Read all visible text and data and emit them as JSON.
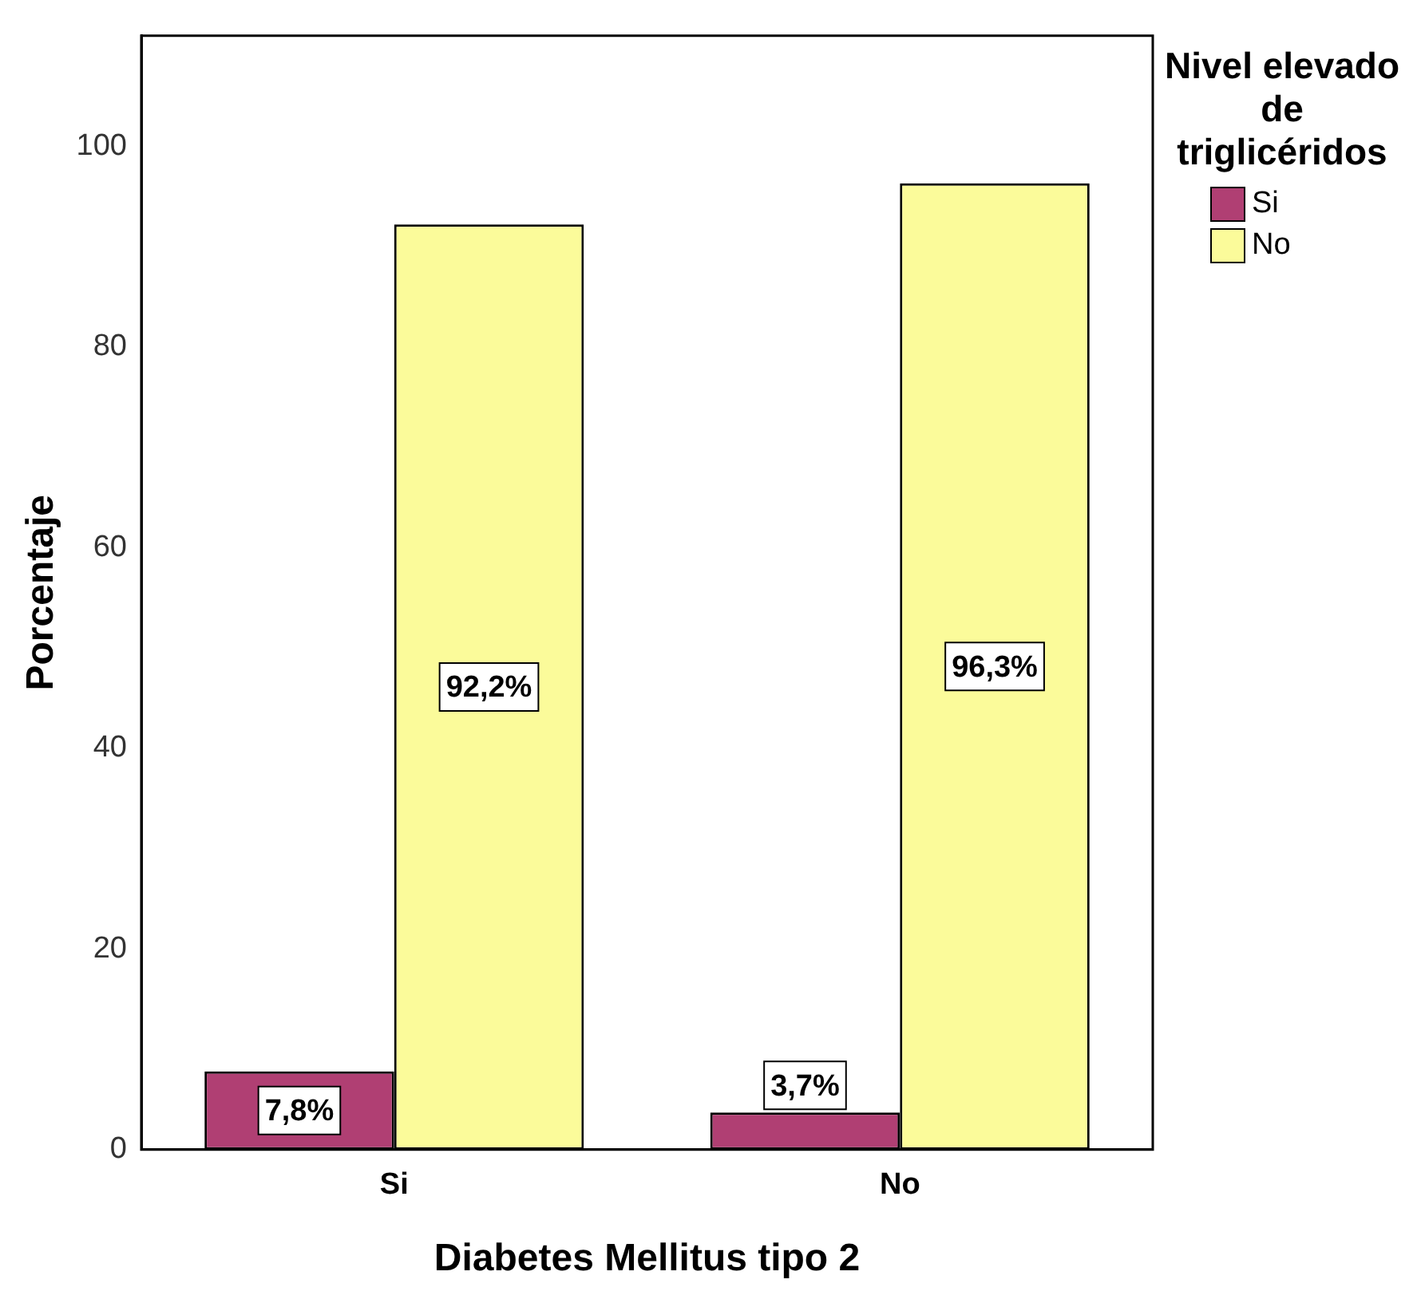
{
  "chart_data": {
    "type": "bar",
    "xlabel": "Diabetes Mellitus tipo 2",
    "ylabel": "Porcentaje",
    "legend_title": "Nivel elevado de triglicéridos",
    "categories": [
      "Si",
      "No"
    ],
    "series": [
      {
        "name": "Si",
        "color": "#b03f73",
        "values": [
          7.8,
          3.7
        ],
        "value_labels": [
          "7,8%",
          "3,7%"
        ]
      },
      {
        "name": "No",
        "color": "#fbfb9a",
        "values": [
          92.2,
          96.3
        ],
        "value_labels": [
          "92,2%",
          "96,3%"
        ]
      }
    ],
    "ylim": [
      0,
      111
    ],
    "yticks": [
      0,
      20,
      40,
      60,
      80,
      100
    ],
    "grid": false,
    "legend": "right"
  }
}
